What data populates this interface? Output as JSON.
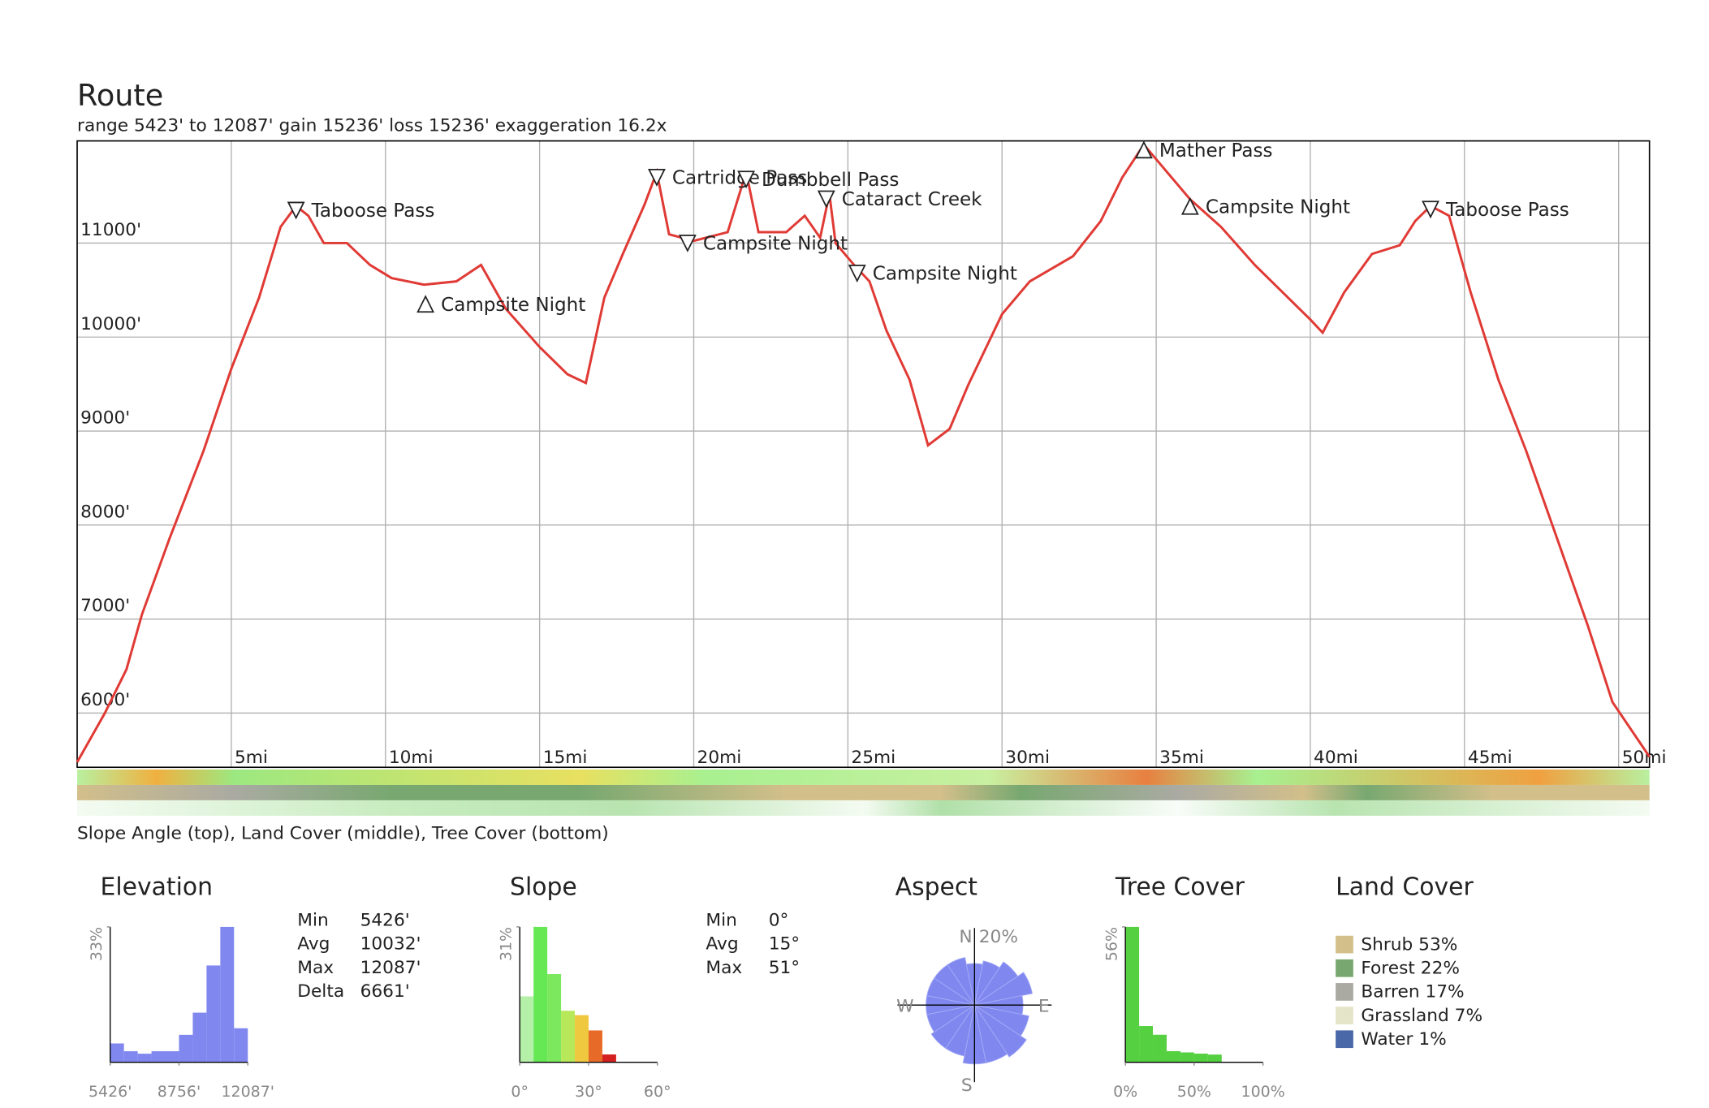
{
  "header": {
    "title": "Route",
    "subtitle": "range 5423' to 12087'  gain 15236'  loss 15236'  exaggeration 16.2x"
  },
  "strip_caption": "Slope Angle (top), Land Cover (middle), Tree Cover (bottom)",
  "chart_data": [
    {
      "type": "line",
      "color": "#e03a35",
      "x": [
        0,
        0.9,
        1.6,
        2.1,
        3.0,
        4.1,
        5.0,
        5.9,
        6.6,
        7.1,
        7.5,
        8.0,
        8.75,
        9.5,
        10.2,
        11.25,
        12.3,
        13.1,
        13.9,
        15.0,
        15.9,
        16.5,
        17.1,
        17.7,
        18.4,
        18.8,
        19.2,
        20.0,
        21.1,
        21.7,
        22.1,
        23.0,
        23.6,
        24.1,
        24.4,
        24.6,
        25.2,
        25.7,
        26.25,
        27.0,
        27.6,
        28.3,
        28.9,
        30.0,
        30.9,
        32.3,
        33.2,
        33.9,
        34.6,
        35.2,
        36.1,
        37.1,
        38.2,
        39.1,
        40.0,
        40.4,
        41.1,
        42.0,
        42.9,
        43.4,
        43.9,
        44.5,
        45.2,
        46.1,
        47.0,
        48.0,
        49.0,
        49.8,
        51.0
      ],
      "y": [
        5477,
        6000,
        6465,
        7047,
        7860,
        8790,
        9663,
        10419,
        11174,
        11395,
        11291,
        11000,
        11000,
        10767,
        10628,
        10558,
        10593,
        10767,
        10302,
        9895,
        9605,
        9512,
        10419,
        10884,
        11407,
        11756,
        11093,
        11023,
        11116,
        11756,
        11116,
        11116,
        11291,
        11058,
        11523,
        11000,
        10767,
        10593,
        10070,
        9547,
        8849,
        9023,
        9488,
        10244,
        10593,
        10860,
        11233,
        11698,
        12047,
        11814,
        11465,
        11174,
        10767,
        10477,
        10186,
        10047,
        10477,
        10884,
        10977,
        11233,
        11395,
        11291,
        10477,
        9547,
        8790,
        7860,
        6930,
        6116,
        5535
      ],
      "xlim": [
        0,
        51
      ],
      "ylim": [
        5423,
        12087
      ],
      "xticks": [
        {
          "value": 5,
          "label": "5mi"
        },
        {
          "value": 10,
          "label": "10mi"
        },
        {
          "value": 15,
          "label": "15mi"
        },
        {
          "value": 20,
          "label": "20mi"
        },
        {
          "value": 25,
          "label": "25mi"
        },
        {
          "value": 30,
          "label": "30mi"
        },
        {
          "value": 35,
          "label": "35mi"
        },
        {
          "value": 40,
          "label": "40mi"
        },
        {
          "value": 45,
          "label": "45mi"
        },
        {
          "value": 50,
          "label": "50mi"
        }
      ],
      "yticks": [
        {
          "value": 6000,
          "label": "6000'"
        },
        {
          "value": 7000,
          "label": "7000'"
        },
        {
          "value": 8000,
          "label": "8000'"
        },
        {
          "value": 9000,
          "label": "9000'"
        },
        {
          "value": 10000,
          "label": "10000'"
        },
        {
          "value": 11000,
          "label": "11000'"
        }
      ],
      "grid": true,
      "annotations": [
        {
          "text": "Taboose Pass",
          "x": 7.1,
          "y": 11350,
          "dir": "down"
        },
        {
          "text": "Campsite Night",
          "x": 11.3,
          "y": 10350,
          "dir": "up"
        },
        {
          "text": "Cartridge Pass",
          "x": 18.8,
          "y": 11700,
          "dir": "down"
        },
        {
          "text": "Campsite Night",
          "x": 19.8,
          "y": 11000,
          "dir": "down"
        },
        {
          "text": "Dumbbell Pass",
          "x": 21.7,
          "y": 11680,
          "dir": "down"
        },
        {
          "text": "Cataract Creek",
          "x": 24.3,
          "y": 11470,
          "dir": "down"
        },
        {
          "text": "Campsite Night",
          "x": 25.3,
          "y": 10680,
          "dir": "down"
        },
        {
          "text": "Mather Pass",
          "x": 34.6,
          "y": 11990,
          "dir": "up"
        },
        {
          "text": "Campsite Night",
          "x": 36.1,
          "y": 11390,
          "dir": "up"
        },
        {
          "text": "Taboose Pass",
          "x": 43.9,
          "y": 11360,
          "dir": "down"
        }
      ]
    },
    {
      "type": "histogram",
      "title": "Elevation",
      "color": "#8088f0",
      "bins": [
        5426,
        6092,
        6758,
        7424,
        8090,
        8756,
        9423,
        10089,
        10755,
        11421,
        12087
      ],
      "values": [
        4.6,
        2.7,
        2.1,
        2.7,
        2.7,
        6.7,
        12.1,
        23.6,
        33,
        8.3
      ],
      "xlim": [
        5426,
        12087
      ],
      "xticks": [
        {
          "value": 5426,
          "label": "5426'"
        },
        {
          "value": 8756,
          "label": "8756'"
        },
        {
          "value": 12087,
          "label": "12087'"
        }
      ],
      "ylim": [
        0,
        33
      ],
      "yticks": [
        {
          "value": 33,
          "label": "33%"
        }
      ],
      "stats": [
        {
          "label": "Min",
          "value": "5426'"
        },
        {
          "label": "Avg",
          "value": "10032'"
        },
        {
          "label": "Max",
          "value": "12087'"
        },
        {
          "label": "Delta",
          "value": "6661'"
        }
      ]
    },
    {
      "type": "histogram",
      "title": "Slope",
      "colors": [
        "#b4f0a8",
        "#66e855",
        "#7ce85e",
        "#b6e85a",
        "#f0c840",
        "#e86a28",
        "#d42020"
      ],
      "bins": [
        0,
        6,
        12,
        18,
        24,
        30,
        36,
        42
      ],
      "values": [
        15.1,
        31,
        20.2,
        11.8,
        10.8,
        7.3,
        1.8
      ],
      "xlim": [
        0,
        60
      ],
      "xticks": [
        {
          "value": 0,
          "label": "0°"
        },
        {
          "value": 30,
          "label": "30°"
        },
        {
          "value": 60,
          "label": "60°"
        }
      ],
      "ylim": [
        0,
        31
      ],
      "yticks": [
        {
          "value": 31,
          "label": "31%"
        }
      ],
      "stats": [
        {
          "label": "Min",
          "value": "0°"
        },
        {
          "label": "Avg",
          "value": "15°"
        },
        {
          "label": "Max",
          "value": "51°"
        }
      ]
    },
    {
      "type": "polar",
      "title": "Aspect",
      "color": "#8088f0",
      "directions": [
        "N",
        "E",
        "S",
        "W"
      ],
      "values": [
        12,
        13,
        15,
        17,
        14,
        16,
        18,
        17,
        17,
        15,
        15,
        14,
        14,
        14,
        14,
        14
      ],
      "rlim": [
        0,
        20
      ],
      "rticks": [
        {
          "value": 20,
          "label": "20%"
        }
      ]
    },
    {
      "type": "histogram",
      "title": "Tree Cover",
      "color": "#55d040",
      "bins": [
        0,
        10,
        20,
        30,
        40,
        50,
        60,
        70
      ],
      "values": [
        56,
        15,
        11.4,
        4.6,
        4.1,
        3.6,
        3.2
      ],
      "xlim": [
        0,
        100
      ],
      "xticks": [
        {
          "value": 0,
          "label": "0%"
        },
        {
          "value": 50,
          "label": "50%"
        },
        {
          "value": 100,
          "label": "100%"
        }
      ],
      "ylim": [
        0,
        56
      ],
      "yticks": [
        {
          "value": 56,
          "label": "56%"
        }
      ]
    },
    {
      "type": "legend",
      "title": "Land Cover",
      "labels": [
        "Shrub 53%",
        "Forest 22%",
        "Barren 17%",
        "Grassland 7%",
        "Water 1%"
      ],
      "values": [
        53,
        22,
        17,
        7,
        1
      ],
      "colors": [
        "#d2bf8a",
        "#78a870",
        "#aaaaa2",
        "#e4e4c8",
        "#4a68a8"
      ]
    }
  ]
}
